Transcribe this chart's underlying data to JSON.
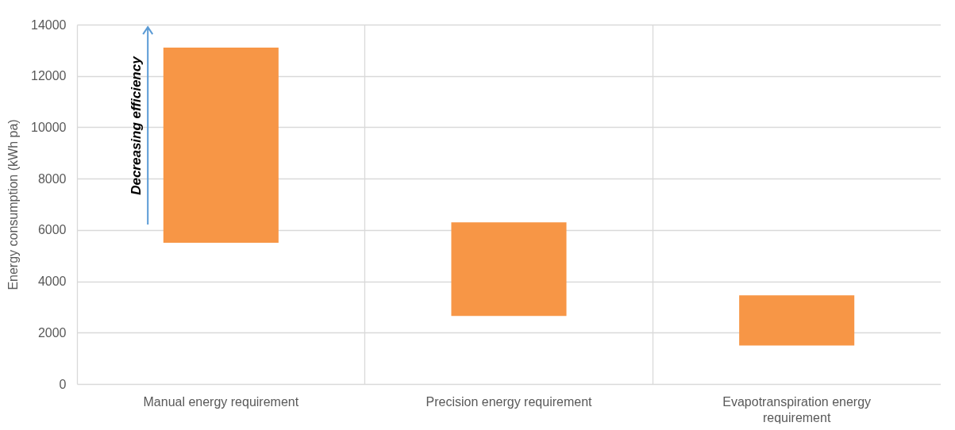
{
  "chart_data": {
    "type": "bar",
    "ylabel": "Energy consumption (kWh pa)",
    "categories": [
      "Manual energy requirement",
      "Precision energy requirement",
      "Evapotranspiration energy requirement"
    ],
    "base": [
      5500,
      2650,
      1500
    ],
    "values": [
      7600,
      3650,
      1950
    ],
    "color": "#f79646",
    "ylim": [
      0,
      14000
    ],
    "yticks": [
      0,
      2000,
      4000,
      6000,
      8000,
      10000,
      12000,
      14000
    ],
    "grid": true,
    "annotations": [
      "Decreasing efficiency"
    ]
  }
}
